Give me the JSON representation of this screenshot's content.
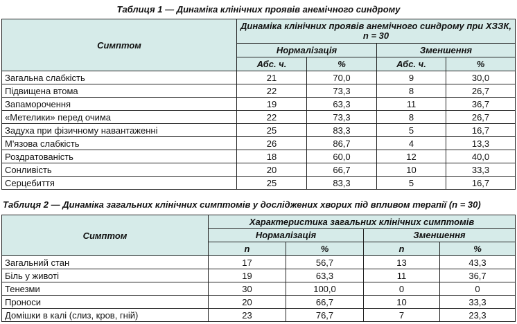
{
  "table1": {
    "caption": "Таблиця 1 — Динаміка клінічних проявів анемічного синдрому",
    "symptom_header": "Симптом",
    "group_header": "Динаміка клінічних проявів анемічного синдрому при ХЗЗК, n = 30",
    "normalization": "Нормалізація",
    "decrease": "Зменшення",
    "abs": "Абс. ч.",
    "pct": "%",
    "rows": [
      {
        "name": "Загальна слабкість",
        "n_abs": "21",
        "n_pct": "70,0",
        "d_abs": "9",
        "d_pct": "30,0"
      },
      {
        "name": "Підвищена втома",
        "n_abs": "22",
        "n_pct": "73,3",
        "d_abs": "8",
        "d_pct": "26,7"
      },
      {
        "name": "Запаморочення",
        "n_abs": "19",
        "n_pct": "63,3",
        "d_abs": "11",
        "d_pct": "36,7"
      },
      {
        "name": "«Метелики» перед очима",
        "n_abs": "22",
        "n_pct": "73,3",
        "d_abs": "8",
        "d_pct": "26,7"
      },
      {
        "name": "Задуха при фізичному навантаженні",
        "n_abs": "25",
        "n_pct": "83,3",
        "d_abs": "5",
        "d_pct": "16,7"
      },
      {
        "name": "М'язова слабкість",
        "n_abs": "26",
        "n_pct": "86,7",
        "d_abs": "4",
        "d_pct": "13,3"
      },
      {
        "name": "Роздратованість",
        "n_abs": "18",
        "n_pct": "60,0",
        "d_abs": "12",
        "d_pct": "40,0"
      },
      {
        "name": "Сонливість",
        "n_abs": "20",
        "n_pct": "66,7",
        "d_abs": "10",
        "d_pct": "33,3"
      },
      {
        "name": "Серцебиття",
        "n_abs": "25",
        "n_pct": "83,3",
        "d_abs": "5",
        "d_pct": "16,7"
      }
    ]
  },
  "table2": {
    "caption": "Таблиця 2 — Динаміка загальних клінічних симптомів у досліджених хворих під впливом терапії (n = 30)",
    "symptom_header": "Симптом",
    "group_header": "Характеристика загальних клінічних симптомів",
    "normalization": "Нормалізація",
    "decrease": "Зменшення",
    "abs": "n",
    "pct": "%",
    "rows": [
      {
        "name": "Загальний стан",
        "n_abs": "17",
        "n_pct": "56,7",
        "d_abs": "13",
        "d_pct": "43,3"
      },
      {
        "name": "Біль у животі",
        "n_abs": "19",
        "n_pct": "63,3",
        "d_abs": "11",
        "d_pct": "36,7"
      },
      {
        "name": "Тенезми",
        "n_abs": "30",
        "n_pct": "100,0",
        "d_abs": "0",
        "d_pct": "0"
      },
      {
        "name": "Проноси",
        "n_abs": "20",
        "n_pct": "66,7",
        "d_abs": "10",
        "d_pct": "33,3"
      },
      {
        "name": "Домішки в калі (слиз, кров, гній)",
        "n_abs": "23",
        "n_pct": "76,7",
        "d_abs": "7",
        "d_pct": "23,3"
      }
    ]
  }
}
